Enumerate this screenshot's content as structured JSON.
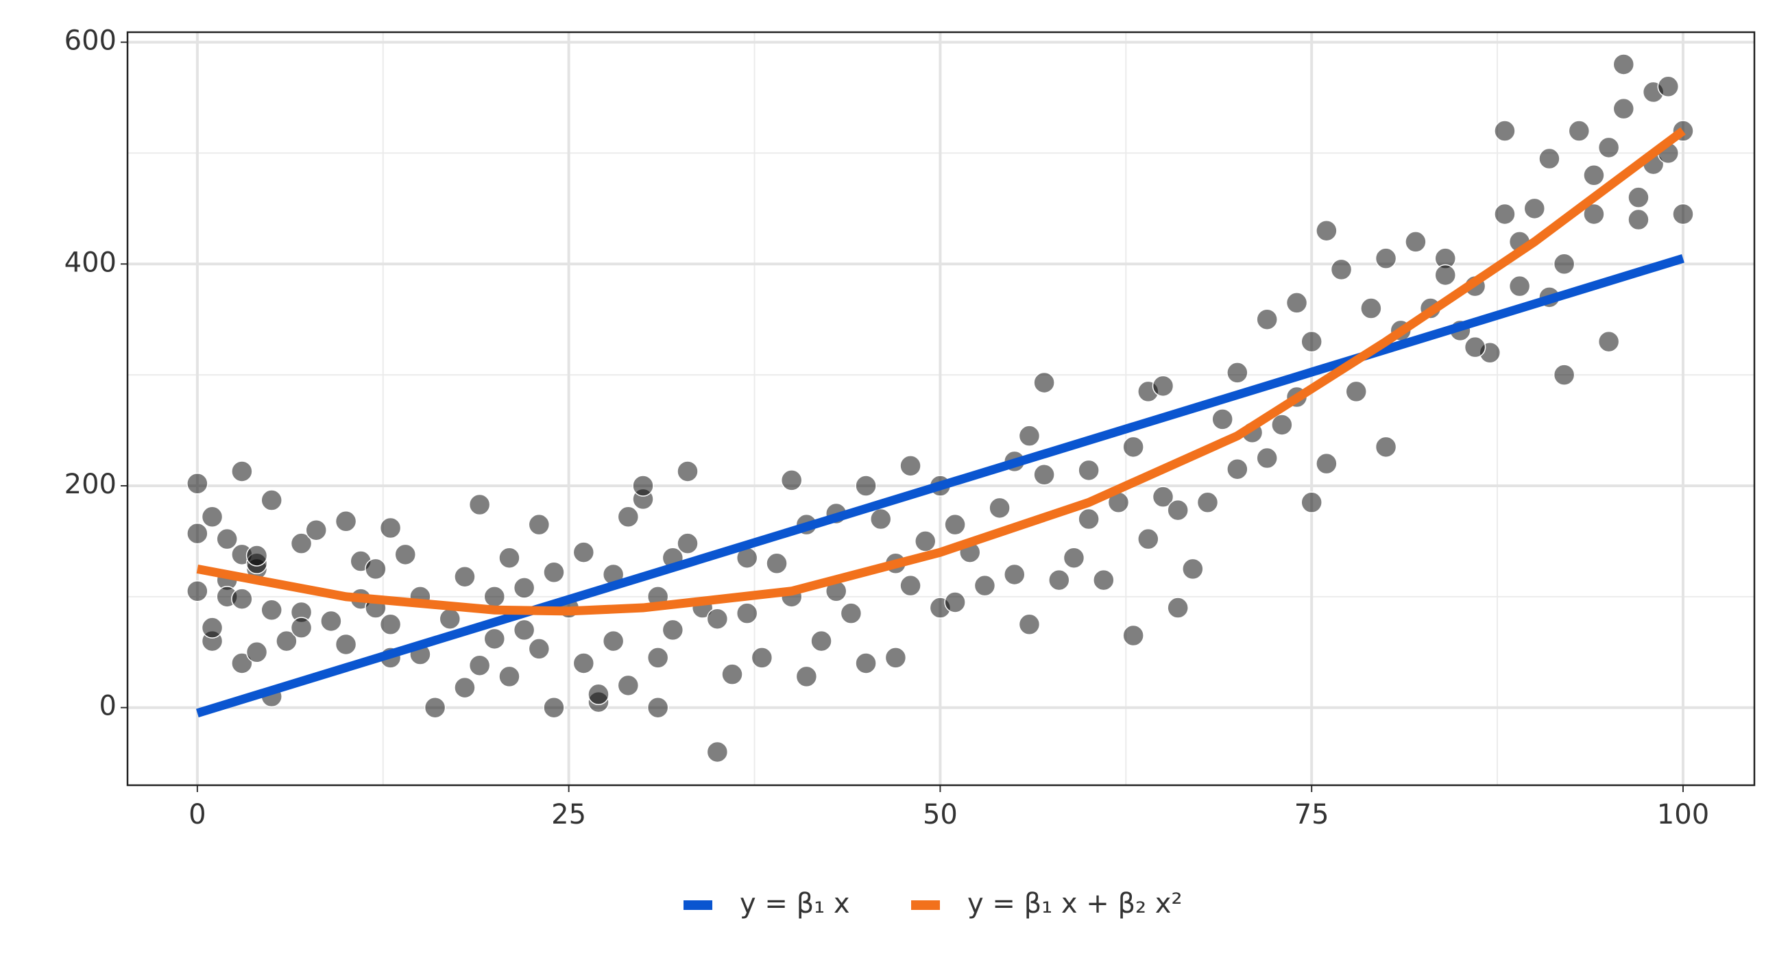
{
  "chart_data": {
    "type": "scatter",
    "xlim": [
      -4.7,
      104.8
    ],
    "ylim": [
      -70,
      609
    ],
    "xticks": [
      0,
      25,
      50,
      75,
      100
    ],
    "yticks": [
      0,
      200,
      400,
      600
    ],
    "grid": true,
    "minor_grid": true,
    "legend": "bottom",
    "points": {
      "color": "#000000",
      "x": [
        0,
        0,
        0,
        1,
        1,
        1,
        2,
        2,
        2,
        3,
        3,
        3,
        3,
        4,
        4,
        4,
        4,
        5,
        5,
        5,
        6,
        7,
        7,
        7,
        8,
        9,
        10,
        10,
        11,
        11,
        12,
        12,
        13,
        13,
        13,
        14,
        15,
        15,
        16,
        17,
        18,
        18,
        19,
        19,
        20,
        20,
        21,
        21,
        22,
        22,
        23,
        23,
        24,
        24,
        25,
        26,
        26,
        27,
        27,
        28,
        28,
        29,
        29,
        30,
        30,
        31,
        31,
        31,
        32,
        32,
        33,
        33,
        34,
        35,
        35,
        36,
        37,
        37,
        38,
        39,
        40,
        40,
        41,
        41,
        42,
        43,
        43,
        44,
        45,
        45,
        46,
        47,
        47,
        48,
        48,
        49,
        50,
        50,
        51,
        51,
        52,
        53,
        54,
        55,
        55,
        56,
        56,
        57,
        57,
        58,
        59,
        60,
        60,
        61,
        62,
        63,
        63,
        64,
        64,
        65,
        65,
        66,
        66,
        67,
        68,
        69,
        70,
        70,
        71,
        72,
        72,
        73,
        74,
        74,
        75,
        75,
        76,
        76,
        77,
        78,
        79,
        80,
        80,
        81,
        82,
        83,
        84,
        85,
        86,
        87,
        88,
        88,
        89,
        90,
        91,
        92,
        92,
        93,
        94,
        95,
        95,
        96,
        96,
        97,
        98,
        98,
        99,
        99,
        100,
        100,
        97,
        94,
        91,
        89,
        86,
        84
      ],
      "values": [
        157,
        202,
        105,
        172,
        60,
        72,
        152,
        115,
        100,
        213,
        138,
        40,
        98,
        125,
        130,
        50,
        137,
        88,
        10,
        187,
        60,
        148,
        86,
        72,
        160,
        78,
        168,
        57,
        132,
        98,
        125,
        90,
        162,
        45,
        75,
        138,
        100,
        48,
        0,
        80,
        18,
        118,
        183,
        38,
        62,
        100,
        28,
        135,
        70,
        108,
        165,
        53,
        0,
        122,
        90,
        40,
        140,
        5,
        12,
        120,
        60,
        172,
        20,
        188,
        200,
        45,
        100,
        0,
        135,
        70,
        148,
        213,
        90,
        80,
        -40,
        30,
        135,
        85,
        45,
        130,
        205,
        100,
        28,
        165,
        60,
        105,
        175,
        85,
        40,
        200,
        170,
        45,
        130,
        218,
        110,
        150,
        200,
        90,
        165,
        95,
        140,
        110,
        180,
        222,
        120,
        75,
        245,
        210,
        293,
        115,
        135,
        170,
        214,
        115,
        185,
        65,
        235,
        285,
        152,
        290,
        190,
        90,
        178,
        125,
        185,
        260,
        302,
        215,
        248,
        350,
        225,
        255,
        365,
        280,
        185,
        330,
        430,
        220,
        395,
        285,
        360,
        235,
        405,
        340,
        420,
        360,
        405,
        340,
        380,
        320,
        520,
        445,
        420,
        450,
        495,
        300,
        400,
        520,
        445,
        330,
        505,
        580,
        540,
        460,
        490,
        555,
        560,
        500,
        445,
        520,
        440,
        480,
        370,
        380,
        325,
        390
      ]
    },
    "series": [
      {
        "name": "y = β₁ x",
        "color": "#0a55d0",
        "x": [
          0,
          100
        ],
        "values": [
          -5,
          405
        ]
      },
      {
        "name": "y = β₁ x + β₂ x²",
        "color": "#f2711c",
        "x": [
          0,
          10,
          20,
          25,
          30,
          40,
          50,
          60,
          70,
          80,
          90,
          100
        ],
        "values": [
          125,
          100,
          88,
          87,
          90,
          105,
          140,
          185,
          245,
          330,
          420,
          520
        ]
      }
    ]
  }
}
